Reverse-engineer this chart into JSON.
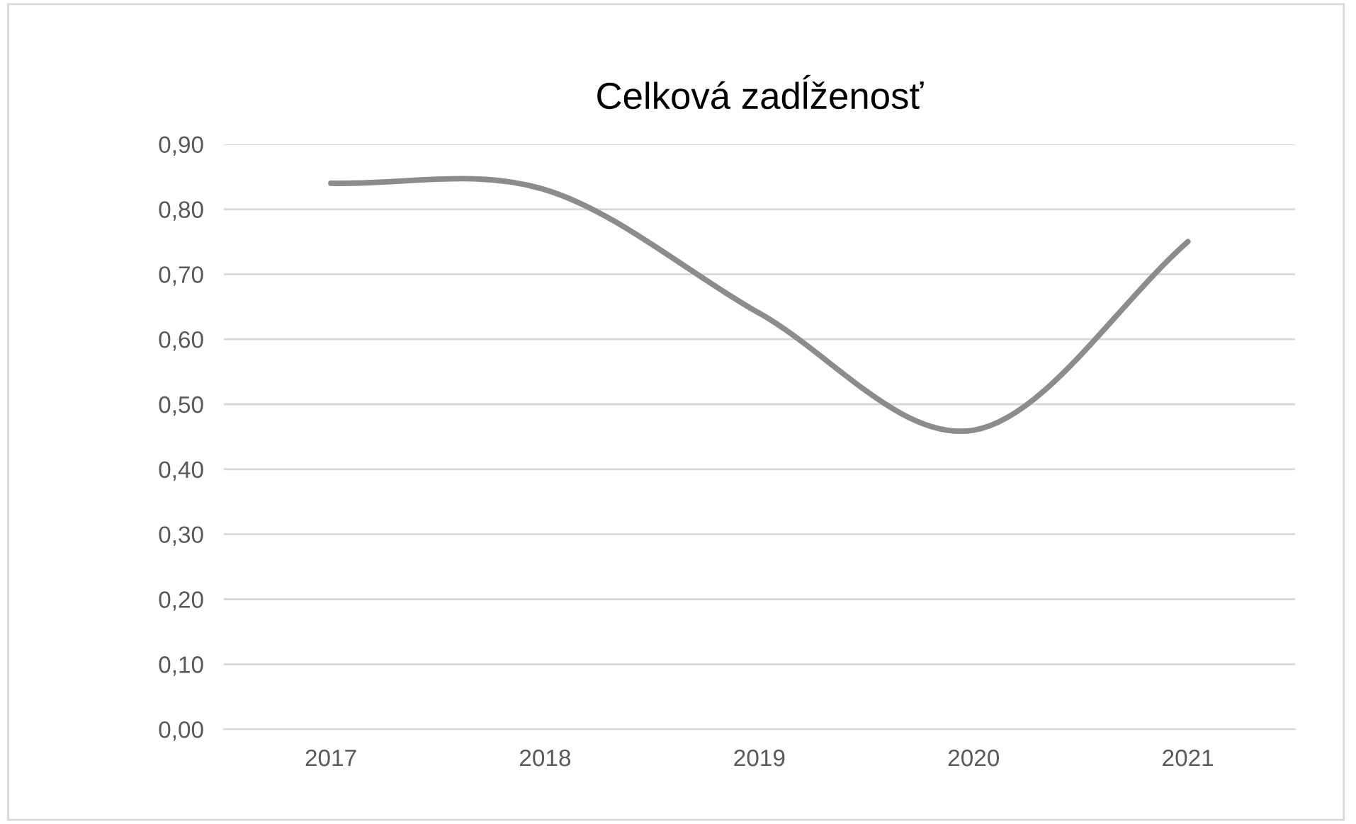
{
  "chart_data": {
    "type": "line",
    "title": "Celková zadĺženosť",
    "categories": [
      "2017",
      "2018",
      "2019",
      "2020",
      "2021"
    ],
    "series": [
      {
        "color": "#8c8c8c",
        "values": [
          0.84,
          0.83,
          0.64,
          0.46,
          0.75
        ]
      }
    ],
    "ylim": [
      0,
      0.9
    ],
    "yticks": [
      {
        "value": 0,
        "label": "0,00"
      },
      {
        "value": 0.1,
        "label": "0,10"
      },
      {
        "value": 0.2,
        "label": "0,20"
      },
      {
        "value": 0.3,
        "label": "0,30"
      },
      {
        "value": 0.4,
        "label": "0,40"
      },
      {
        "value": 0.5,
        "label": "0,50"
      },
      {
        "value": 0.6,
        "label": "0,60"
      },
      {
        "value": 0.7,
        "label": "0,70"
      },
      {
        "value": 0.8,
        "label": "0,80"
      },
      {
        "value": 0.9,
        "label": "0,90"
      }
    ],
    "grid": "y",
    "legend": false,
    "marker": "none",
    "line_style": "solid"
  }
}
